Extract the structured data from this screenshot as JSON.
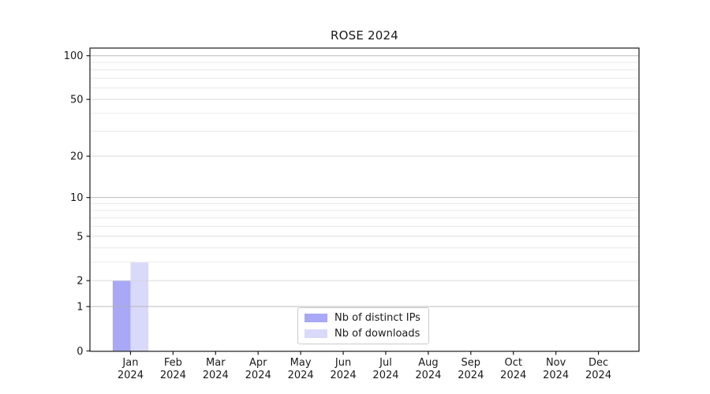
{
  "chart_data": {
    "type": "bar",
    "title": "ROSE 2024",
    "categories": [
      "Jan",
      "Feb",
      "Mar",
      "Apr",
      "May",
      "Jun",
      "Jul",
      "Aug",
      "Sep",
      "Oct",
      "Nov",
      "Dec"
    ],
    "x_tick_year": "2024",
    "series": [
      {
        "name": "Nb of distinct IPs",
        "color": "#a8a8f6",
        "values": [
          2,
          0,
          0,
          0,
          0,
          0,
          0,
          0,
          0,
          0,
          0,
          0
        ]
      },
      {
        "name": "Nb of downloads",
        "color": "#d9d9fa",
        "values": [
          3,
          0,
          0,
          0,
          0,
          0,
          0,
          0,
          0,
          0,
          0,
          0
        ]
      }
    ],
    "xlabel": "",
    "ylabel": "",
    "yscale": "log1p",
    "ylim": [
      0,
      113
    ],
    "yticks": [
      0,
      1,
      2,
      5,
      10,
      20,
      50,
      100
    ],
    "minor_yticks": [
      3,
      4,
      6,
      7,
      8,
      9,
      30,
      40,
      60,
      70,
      80,
      90
    ],
    "grid": "on",
    "legend_position": "lower center inside"
  }
}
